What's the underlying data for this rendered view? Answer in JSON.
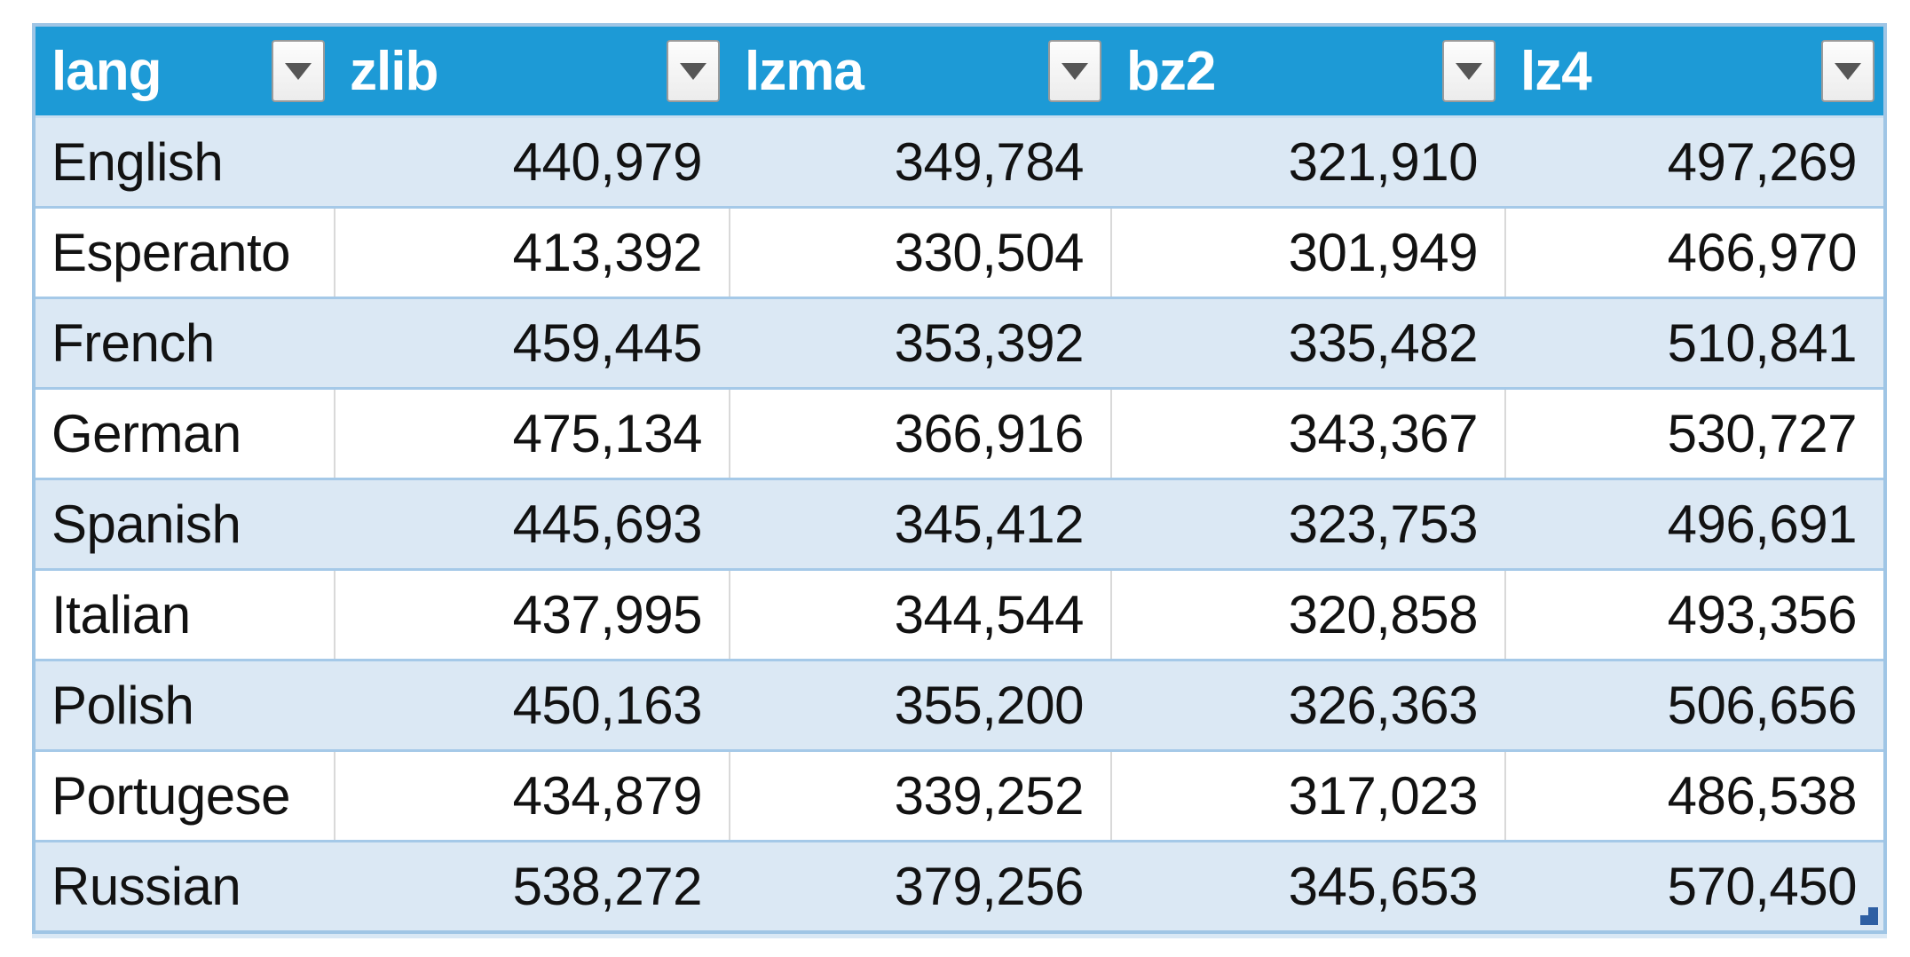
{
  "colors": {
    "header_bg": "#1D9AD6",
    "header_text": "#FFFFFF",
    "band_fill": "#DBE8F4",
    "row_fill": "#FFFFFF",
    "row_border": "#A5C9E8",
    "outer_border": "#9FC5E5",
    "gridline": "#D9D9D9",
    "handle": "#2E5FA3"
  },
  "icons": {
    "filter_dropdown": "filter-dropdown-icon"
  },
  "table": {
    "headers": [
      "lang",
      "zlib",
      "lzma",
      "bz2",
      "lz4"
    ],
    "rows": [
      {
        "cells": [
          "English",
          "440,979",
          "349,784",
          "321,910",
          "497,269"
        ]
      },
      {
        "cells": [
          "Esperanto",
          "413,392",
          "330,504",
          "301,949",
          "466,970"
        ]
      },
      {
        "cells": [
          "French",
          "459,445",
          "353,392",
          "335,482",
          "510,841"
        ]
      },
      {
        "cells": [
          "German",
          "475,134",
          "366,916",
          "343,367",
          "530,727"
        ]
      },
      {
        "cells": [
          "Spanish",
          "445,693",
          "345,412",
          "323,753",
          "496,691"
        ]
      },
      {
        "cells": [
          "Italian",
          "437,995",
          "344,544",
          "320,858",
          "493,356"
        ]
      },
      {
        "cells": [
          "Polish",
          "450,163",
          "355,200",
          "326,363",
          "506,656"
        ]
      },
      {
        "cells": [
          "Portugese",
          "434,879",
          "339,252",
          "317,023",
          "486,538"
        ]
      },
      {
        "cells": [
          "Russian",
          "538,272",
          "379,256",
          "345,653",
          "570,450"
        ]
      }
    ]
  }
}
